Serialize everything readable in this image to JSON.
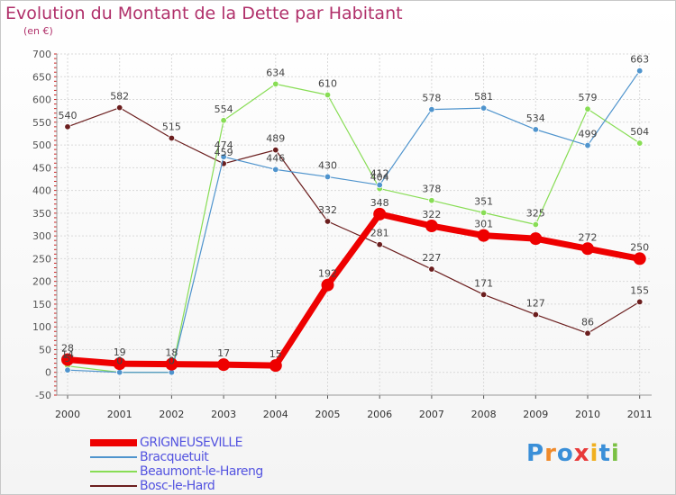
{
  "title": "Evolution du Montant de la Dette par Habitant",
  "subtitle": "(en €)",
  "logo_text": "Proxiti",
  "colors": {
    "title": "#b0306a",
    "legend_text": "#5454e0"
  },
  "chart_data": {
    "type": "line",
    "title": "Evolution du Montant de la Dette par Habitant",
    "ylabel": "(en €)",
    "x": [
      "2000",
      "2001",
      "2002",
      "2003",
      "2004",
      "2005",
      "2006",
      "2007",
      "2008",
      "2009",
      "2010",
      "2011"
    ],
    "ylim": [
      -50,
      700
    ],
    "yticks": [
      -50,
      0,
      50,
      100,
      150,
      200,
      250,
      300,
      350,
      400,
      450,
      500,
      550,
      600,
      650,
      700
    ],
    "grid": true,
    "legend_position": "bottom-left",
    "series": [
      {
        "name": "GRIGNEUSEVILLE",
        "color": "#ee0000",
        "values": [
          28,
          19,
          18,
          17,
          15,
          192,
          348,
          322,
          301,
          294,
          272,
          250
        ],
        "labels": [
          "28",
          "19",
          "18",
          "17",
          "15",
          "192",
          "348",
          "322",
          "301",
          "",
          "272",
          "250"
        ]
      },
      {
        "name": "Bracquetuit",
        "color": "#4f94cd",
        "values": [
          5,
          0,
          0,
          474,
          446,
          430,
          412,
          578,
          581,
          534,
          499,
          663
        ],
        "labels": [
          "5",
          "0",
          "0",
          "474",
          "446",
          "430",
          "412",
          "578",
          "581",
          "534",
          "499",
          "663"
        ]
      },
      {
        "name": "Beaumont-le-Hareng",
        "color": "#88dd55",
        "values": [
          14,
          0,
          0,
          554,
          634,
          610,
          404,
          378,
          351,
          325,
          579,
          504
        ],
        "labels": [
          "14",
          "0",
          "0",
          "554",
          "634",
          "610",
          "404",
          "378",
          "351",
          "325",
          "579",
          "504"
        ]
      },
      {
        "name": "Bosc-le-Hard",
        "color": "#6b1e1e",
        "values": [
          540,
          582,
          515,
          459,
          489,
          332,
          281,
          227,
          171,
          127,
          86,
          155
        ],
        "labels": [
          "540",
          "582",
          "515",
          "459",
          "489",
          "332",
          "281",
          "227",
          "171",
          "127",
          "86",
          "155"
        ]
      }
    ]
  },
  "legend": {
    "items": [
      {
        "label": "GRIGNEUSEVILLE",
        "color": "#ee0000"
      },
      {
        "label": "Bracquetuit",
        "color": "#4f94cd"
      },
      {
        "label": "Beaumont-le-Hareng",
        "color": "#88dd55"
      },
      {
        "label": "Bosc-le-Hard",
        "color": "#6b1e1e"
      }
    ]
  }
}
